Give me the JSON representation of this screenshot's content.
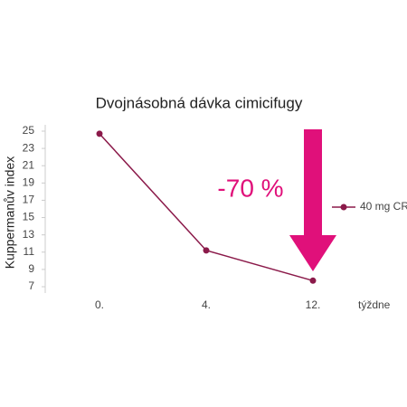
{
  "chart_data": {
    "type": "line",
    "title": "Dvojnásobná dávka cimicifugy",
    "x_label": "týždne",
    "y_label": "Kuppermanův index",
    "categories": [
      "0.",
      "4.",
      "12."
    ],
    "series": [
      {
        "name": "40 mg CR",
        "color": "#8b1a4a",
        "values": [
          24.7,
          11.2,
          7.7
        ]
      }
    ],
    "ylim": [
      7,
      25
    ],
    "yticks": [
      7,
      9,
      11,
      13,
      15,
      17,
      19,
      21,
      23,
      25
    ],
    "annotation": "-70 %",
    "legend": "right"
  }
}
